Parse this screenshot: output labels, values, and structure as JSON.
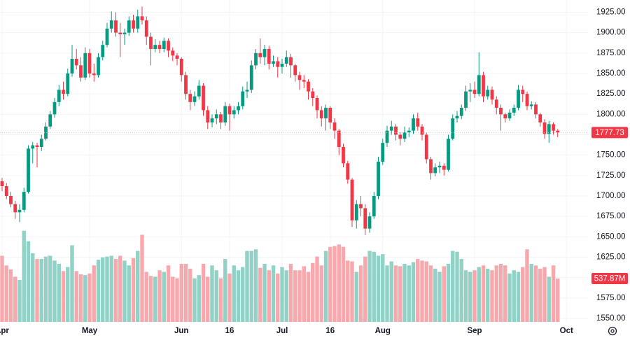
{
  "chart_data": {
    "type": "candlestick",
    "up_color": "#089981",
    "down_color": "#f23645",
    "volume_up_color": "#92d2c6",
    "volume_down_color": "#f7a8ad",
    "grid": true,
    "ylim": [
      1526,
      1940
    ],
    "yticks": [
      {
        "value": 1550,
        "label": "1550.00"
      },
      {
        "value": 1575,
        "label": "1575.00"
      },
      {
        "value": 1600,
        "label": "1600.00"
      },
      {
        "value": 1625,
        "label": "1625.00"
      },
      {
        "value": 1650,
        "label": "1650.00"
      },
      {
        "value": 1675,
        "label": "1675.00"
      },
      {
        "value": 1700,
        "label": "1700.00"
      },
      {
        "value": 1725,
        "label": "1725.00"
      },
      {
        "value": 1750,
        "label": "1750.00"
      },
      {
        "value": 1775,
        "label": "1775.00"
      },
      {
        "value": 1800,
        "label": "1800.00"
      },
      {
        "value": 1825,
        "label": "1825.00"
      },
      {
        "value": 1850,
        "label": "1850.00"
      },
      {
        "value": 1875,
        "label": "1875.00"
      },
      {
        "value": 1900,
        "label": "1900.00"
      },
      {
        "value": 1925,
        "label": "1925.00"
      }
    ],
    "xticks": [
      {
        "value": 0,
        "label": "Apr"
      },
      {
        "value": 20,
        "label": "May"
      },
      {
        "value": 41,
        "label": "Jun"
      },
      {
        "value": 52,
        "label": "16"
      },
      {
        "value": 64,
        "label": "Jul"
      },
      {
        "value": 75,
        "label": "16"
      },
      {
        "value": 87,
        "label": "Aug"
      },
      {
        "value": 108,
        "label": "Sep"
      },
      {
        "value": 129,
        "label": "Oct"
      }
    ],
    "volume_ylim": [
      0,
      3990
    ],
    "last_volume_label": "537.87M",
    "candles": [
      [
        1718,
        1722,
        1706,
        1712
      ],
      [
        1712,
        1716,
        1696,
        1700
      ],
      [
        1700,
        1705,
        1686,
        1690
      ],
      [
        1690,
        1694,
        1672,
        1680
      ],
      [
        1680,
        1690,
        1668,
        1683
      ],
      [
        1683,
        1710,
        1680,
        1705
      ],
      [
        1705,
        1762,
        1703,
        1758
      ],
      [
        1758,
        1766,
        1740,
        1762
      ],
      [
        1762,
        1765,
        1735,
        1760
      ],
      [
        1760,
        1775,
        1755,
        1770
      ],
      [
        1770,
        1790,
        1768,
        1785
      ],
      [
        1785,
        1804,
        1782,
        1800
      ],
      [
        1800,
        1820,
        1796,
        1815
      ],
      [
        1815,
        1836,
        1810,
        1830
      ],
      [
        1830,
        1840,
        1818,
        1825
      ],
      [
        1825,
        1856,
        1822,
        1850
      ],
      [
        1850,
        1885,
        1846,
        1868
      ],
      [
        1868,
        1880,
        1855,
        1860
      ],
      [
        1860,
        1870,
        1840,
        1845
      ],
      [
        1845,
        1882,
        1842,
        1875
      ],
      [
        1875,
        1880,
        1845,
        1850
      ],
      [
        1850,
        1862,
        1840,
        1848
      ],
      [
        1848,
        1875,
        1845,
        1870
      ],
      [
        1870,
        1890,
        1866,
        1885
      ],
      [
        1885,
        1912,
        1882,
        1905
      ],
      [
        1905,
        1926,
        1900,
        1915
      ],
      [
        1915,
        1925,
        1895,
        1900
      ],
      [
        1900,
        1912,
        1870,
        1898
      ],
      [
        1898,
        1905,
        1885,
        1900
      ],
      [
        1900,
        1920,
        1896,
        1915
      ],
      [
        1915,
        1922,
        1900,
        1905
      ],
      [
        1905,
        1928,
        1900,
        1920
      ],
      [
        1920,
        1932,
        1910,
        1915
      ],
      [
        1915,
        1920,
        1885,
        1895
      ],
      [
        1895,
        1900,
        1860,
        1880
      ],
      [
        1880,
        1892,
        1876,
        1885
      ],
      [
        1885,
        1890,
        1875,
        1880
      ],
      [
        1880,
        1894,
        1876,
        1890
      ],
      [
        1890,
        1893,
        1870,
        1878
      ],
      [
        1878,
        1882,
        1865,
        1872
      ],
      [
        1872,
        1875,
        1860,
        1868
      ],
      [
        1868,
        1870,
        1840,
        1848
      ],
      [
        1848,
        1852,
        1818,
        1825
      ],
      [
        1825,
        1830,
        1805,
        1815
      ],
      [
        1815,
        1828,
        1810,
        1822
      ],
      [
        1822,
        1842,
        1818,
        1835
      ],
      [
        1835,
        1838,
        1798,
        1805
      ],
      [
        1805,
        1810,
        1782,
        1790
      ],
      [
        1790,
        1800,
        1784,
        1795
      ],
      [
        1795,
        1806,
        1788,
        1800
      ],
      [
        1800,
        1803,
        1782,
        1790
      ],
      [
        1790,
        1815,
        1786,
        1810
      ],
      [
        1810,
        1813,
        1780,
        1800
      ],
      [
        1800,
        1810,
        1795,
        1805
      ],
      [
        1805,
        1815,
        1800,
        1810
      ],
      [
        1810,
        1834,
        1806,
        1828
      ],
      [
        1828,
        1840,
        1820,
        1830
      ],
      [
        1830,
        1866,
        1826,
        1860
      ],
      [
        1860,
        1880,
        1855,
        1875
      ],
      [
        1875,
        1893,
        1862,
        1870
      ],
      [
        1870,
        1885,
        1860,
        1880
      ],
      [
        1880,
        1884,
        1855,
        1862
      ],
      [
        1862,
        1872,
        1858,
        1865
      ],
      [
        1865,
        1870,
        1845,
        1858
      ],
      [
        1858,
        1868,
        1850,
        1862
      ],
      [
        1862,
        1878,
        1858,
        1870
      ],
      [
        1870,
        1874,
        1845,
        1860
      ],
      [
        1860,
        1862,
        1840,
        1848
      ],
      [
        1848,
        1852,
        1830,
        1842
      ],
      [
        1842,
        1848,
        1832,
        1840
      ],
      [
        1840,
        1843,
        1818,
        1828
      ],
      [
        1828,
        1832,
        1810,
        1820
      ],
      [
        1820,
        1823,
        1795,
        1805
      ],
      [
        1805,
        1810,
        1785,
        1795
      ],
      [
        1795,
        1812,
        1780,
        1808
      ],
      [
        1808,
        1810,
        1782,
        1790
      ],
      [
        1790,
        1795,
        1770,
        1780
      ],
      [
        1780,
        1782,
        1750,
        1760
      ],
      [
        1760,
        1764,
        1735,
        1740
      ],
      [
        1740,
        1743,
        1715,
        1720
      ],
      [
        1720,
        1722,
        1662,
        1670
      ],
      [
        1670,
        1695,
        1660,
        1690
      ],
      [
        1690,
        1700,
        1675,
        1685
      ],
      [
        1685,
        1690,
        1652,
        1660
      ],
      [
        1660,
        1680,
        1655,
        1675
      ],
      [
        1675,
        1705,
        1672,
        1700
      ],
      [
        1700,
        1748,
        1696,
        1742
      ],
      [
        1742,
        1770,
        1738,
        1765
      ],
      [
        1765,
        1786,
        1760,
        1780
      ],
      [
        1780,
        1792,
        1775,
        1785
      ],
      [
        1785,
        1788,
        1768,
        1775
      ],
      [
        1775,
        1778,
        1762,
        1770
      ],
      [
        1770,
        1785,
        1766,
        1778
      ],
      [
        1778,
        1784,
        1772,
        1780
      ],
      [
        1780,
        1800,
        1776,
        1795
      ],
      [
        1795,
        1802,
        1780,
        1785
      ],
      [
        1785,
        1788,
        1768,
        1775
      ],
      [
        1775,
        1778,
        1740,
        1745
      ],
      [
        1745,
        1748,
        1720,
        1728
      ],
      [
        1728,
        1740,
        1724,
        1735
      ],
      [
        1735,
        1742,
        1728,
        1737
      ],
      [
        1737,
        1740,
        1725,
        1732
      ],
      [
        1732,
        1775,
        1730,
        1770
      ],
      [
        1770,
        1800,
        1768,
        1795
      ],
      [
        1795,
        1804,
        1790,
        1798
      ],
      [
        1798,
        1812,
        1794,
        1808
      ],
      [
        1808,
        1835,
        1804,
        1828
      ],
      [
        1828,
        1838,
        1815,
        1830
      ],
      [
        1830,
        1840,
        1820,
        1825
      ],
      [
        1825,
        1876,
        1822,
        1848
      ],
      [
        1848,
        1852,
        1815,
        1822
      ],
      [
        1822,
        1835,
        1818,
        1830
      ],
      [
        1830,
        1834,
        1812,
        1818
      ],
      [
        1818,
        1822,
        1800,
        1808
      ],
      [
        1808,
        1812,
        1780,
        1800
      ],
      [
        1800,
        1802,
        1790,
        1795
      ],
      [
        1795,
        1806,
        1792,
        1802
      ],
      [
        1802,
        1812,
        1798,
        1808
      ],
      [
        1808,
        1836,
        1805,
        1830
      ],
      [
        1830,
        1835,
        1815,
        1825
      ],
      [
        1825,
        1828,
        1805,
        1810
      ],
      [
        1810,
        1816,
        1806,
        1812
      ],
      [
        1812,
        1815,
        1795,
        1800
      ],
      [
        1800,
        1802,
        1785,
        1790
      ],
      [
        1790,
        1794,
        1770,
        1776
      ],
      [
        1776,
        1792,
        1765,
        1788
      ],
      [
        1788,
        1790,
        1775,
        1780
      ],
      [
        1780,
        1782,
        1772,
        1777.73
      ]
    ],
    "volumes": [
      820,
      700,
      650,
      560,
      520,
      1130,
      1000,
      850,
      780,
      780,
      810,
      820,
      760,
      720,
      630,
      680,
      950,
      630,
      590,
      580,
      600,
      700,
      770,
      800,
      810,
      820,
      780,
      820,
      760,
      700,
      790,
      880,
      1080,
      620,
      570,
      560,
      640,
      620,
      700,
      560,
      540,
      720,
      720,
      660,
      540,
      580,
      720,
      560,
      700,
      640,
      540,
      780,
      600,
      700,
      640,
      680,
      880,
      880,
      900,
      670,
      720,
      640,
      700,
      600,
      680,
      640,
      720,
      640,
      640,
      690,
      620,
      730,
      810,
      700,
      880,
      930,
      940,
      960,
      930,
      760,
      750,
      620,
      700,
      810,
      880,
      870,
      820,
      840,
      700,
      750,
      700,
      690,
      720,
      700,
      740,
      780,
      760,
      750,
      700,
      660,
      620,
      690,
      720,
      880,
      870,
      780,
      640,
      620,
      640,
      680,
      700,
      660,
      640,
      700,
      720,
      700,
      600,
      640,
      620,
      680,
      900,
      720,
      700,
      660,
      680,
      560,
      700,
      537.87
    ]
  }
}
